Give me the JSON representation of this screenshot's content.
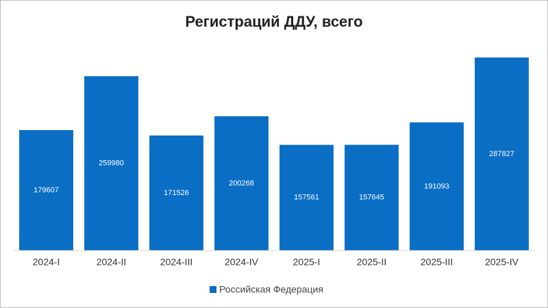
{
  "chart_data": {
    "type": "bar",
    "title": "Регистраций ДДУ, всего",
    "categories": [
      "2024-I",
      "2024-II",
      "2024-III",
      "2024-IV",
      "2025-I",
      "2025-II",
      "2025-III",
      "2025-IV"
    ],
    "series": [
      {
        "name": "Российская Федерация",
        "color": "#0a6ec4",
        "values": [
          179607,
          259980,
          171526,
          200268,
          157561,
          157645,
          191093,
          287827
        ]
      }
    ]
  }
}
